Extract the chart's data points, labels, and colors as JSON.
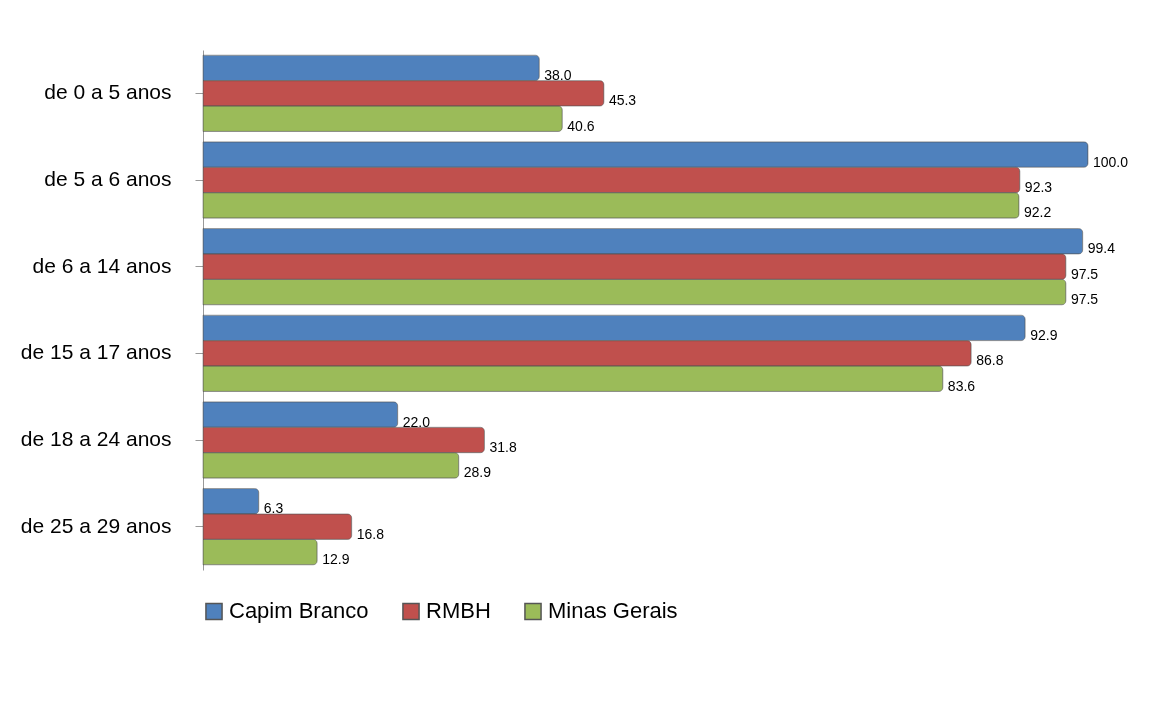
{
  "chart_data": {
    "type": "bar",
    "orientation": "horizontal",
    "categories": [
      "de 0 a 5 anos",
      "de 5 a 6 anos",
      "de 6 a 14 anos",
      "de 15 a 17 anos",
      "de 18 a 24 anos",
      "de 25 a 29 anos"
    ],
    "series": [
      {
        "name": "Capim Branco",
        "color": "#4f81bd",
        "values": [
          38.0,
          100.0,
          99.4,
          92.9,
          22.0,
          6.3
        ],
        "value_labels": [
          "38.0",
          "100.0",
          "99.4",
          "92.9",
          "22.0",
          "6.3"
        ]
      },
      {
        "name": "RMBH",
        "color": "#c0504d",
        "values": [
          45.3,
          92.3,
          97.5,
          86.8,
          31.8,
          16.8
        ],
        "value_labels": [
          "45.3",
          "92.3",
          "97.5",
          "86.8",
          "31.8",
          "16.8"
        ]
      },
      {
        "name": "Minas Gerais",
        "color": "#9bbb59",
        "values": [
          40.6,
          92.2,
          97.5,
          83.6,
          28.9,
          12.9
        ],
        "value_labels": [
          "40.6",
          "92.2",
          "97.5",
          "83.6",
          "28.9",
          "12.9"
        ]
      }
    ],
    "xlim": [
      0,
      100
    ],
    "legend": "bottom",
    "tick_labels": "y"
  }
}
